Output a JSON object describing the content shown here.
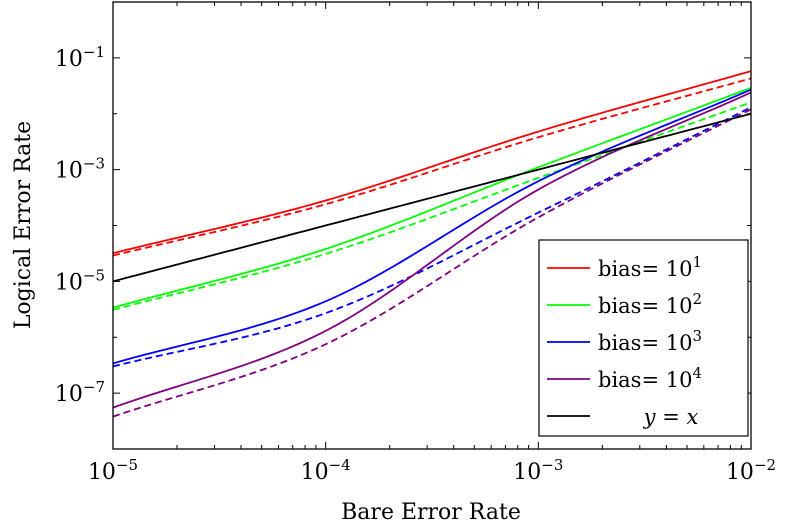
{
  "chart_data": {
    "type": "line",
    "xlabel": "Bare Error Rate",
    "ylabel": "Logical Error Rate",
    "x_scale": "log",
    "y_scale": "log",
    "xlim": [
      1e-05,
      0.01
    ],
    "ylim": [
      1e-08,
      1
    ],
    "x_ticks": [
      {
        "base": "10",
        "exp": "−5",
        "value": 1e-05
      },
      {
        "base": "10",
        "exp": "−4",
        "value": 0.0001
      },
      {
        "base": "10",
        "exp": "−3",
        "value": 0.001
      },
      {
        "base": "10",
        "exp": "−2",
        "value": 0.01
      }
    ],
    "y_ticks": [
      {
        "base": "10",
        "exp": "−1",
        "value": 0.1
      },
      {
        "base": "10",
        "exp": "−3",
        "value": 0.001
      },
      {
        "base": "10",
        "exp": "−5",
        "value": 1e-05
      },
      {
        "base": "10",
        "exp": "−7",
        "value": 1e-07
      }
    ],
    "grid": false,
    "legend_position": "bottom-right",
    "legend": [
      {
        "prefix": "bias= ",
        "base": "10",
        "exp": "1",
        "color": "#ff0000"
      },
      {
        "prefix": "bias= ",
        "base": "10",
        "exp": "2",
        "color": "#00ff00"
      },
      {
        "prefix": "bias= ",
        "base": "10",
        "exp": "3",
        "color": "#0000ff"
      },
      {
        "prefix": "bias= ",
        "base": "10",
        "exp": "4",
        "color": "#800080"
      },
      {
        "prefix": "",
        "text": "y = x",
        "color": "#000000"
      }
    ],
    "series": [
      {
        "color": "#ff0000",
        "dash": false,
        "points": [
          [
            1e-05,
            3.2e-05
          ],
          [
            0.0001,
            0.00028
          ],
          [
            0.001,
            0.0048
          ],
          [
            0.01,
            0.058
          ]
        ]
      },
      {
        "color": "#ff0000",
        "dash": true,
        "points": [
          [
            1e-05,
            2.9e-05
          ],
          [
            0.0001,
            0.00024
          ],
          [
            0.001,
            0.0038
          ],
          [
            0.01,
            0.043
          ]
        ]
      },
      {
        "color": "#00ff00",
        "dash": false,
        "points": [
          [
            1e-05,
            3.4e-06
          ],
          [
            0.0001,
            3.8e-05
          ],
          [
            0.001,
            0.0011
          ],
          [
            0.01,
            0.029
          ]
        ]
      },
      {
        "color": "#00ff00",
        "dash": true,
        "points": [
          [
            1e-05,
            3.1e-06
          ],
          [
            0.0001,
            3.1e-05
          ],
          [
            0.001,
            0.00071
          ],
          [
            0.01,
            0.016
          ]
        ]
      },
      {
        "color": "#0000ff",
        "dash": false,
        "points": [
          [
            1e-05,
            3.4e-07
          ],
          [
            0.0001,
            4.4e-06
          ],
          [
            0.001,
            0.00062
          ],
          [
            0.01,
            0.027
          ]
        ]
      },
      {
        "color": "#0000ff",
        "dash": true,
        "points": [
          [
            1e-05,
            3e-07
          ],
          [
            0.0001,
            2.7e-06
          ],
          [
            0.001,
            0.00017
          ],
          [
            0.01,
            0.013
          ]
        ]
      },
      {
        "color": "#800080",
        "dash": false,
        "points": [
          [
            1e-05,
            5.5e-08
          ],
          [
            0.0001,
            1.3e-06
          ],
          [
            0.001,
            0.00044
          ],
          [
            0.01,
            0.024
          ]
        ]
      },
      {
        "color": "#800080",
        "dash": true,
        "points": [
          [
            1e-05,
            3.8e-08
          ],
          [
            0.0001,
            7.5e-07
          ],
          [
            0.001,
            0.00014
          ],
          [
            0.01,
            0.012
          ]
        ]
      },
      {
        "color": "#000000",
        "dash": false,
        "points": [
          [
            1e-05,
            1e-05
          ],
          [
            0.01,
            0.01
          ]
        ]
      }
    ]
  }
}
